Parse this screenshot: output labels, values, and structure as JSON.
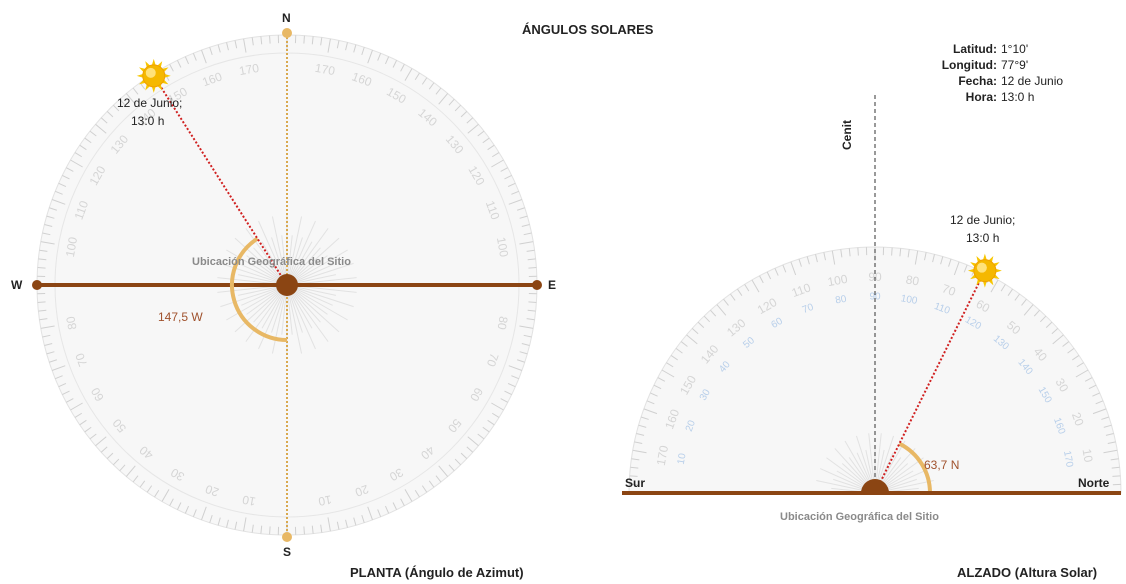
{
  "title": "ÁNGULOS SOLARES",
  "colors": {
    "axis_brown": "#8b4513",
    "ns_line": "#d9a94f",
    "angle_arc": "#e8b865",
    "dotted_red": "#d02020",
    "dial_face": "#f7f7f7",
    "dial_ticks": "#d0d0d0",
    "dial_numbers": "#d5d5d5",
    "blue_numbers": "#b8cfea",
    "sun": "#f5b800",
    "angle_text": "#a0522d"
  },
  "plan": {
    "caption": "PLANTA (Ángulo de Azimut)",
    "north": "N",
    "south": "S",
    "west": "W",
    "east": "E",
    "site_label": "Ubicación Geográfica del Sitio",
    "sun_label_line1": "12 de Junio;",
    "sun_label_line2": "13:0 h",
    "azimuth_label": "147,5  W",
    "azimuth_deg": 147.5,
    "sun_icon": "sun-icon",
    "dial_labels": [
      "180",
      "170",
      "160",
      "150",
      "140",
      "130",
      "120",
      "110",
      "100",
      "90",
      "80",
      "70",
      "60",
      "50",
      "40",
      "30",
      "20",
      "10",
      "0"
    ]
  },
  "elevation": {
    "caption": "ALZADO (Altura Solar)",
    "zenith": "Cenit",
    "south": "Sur",
    "north": "Norte",
    "site_label": "Ubicación Geográfica del Sitio",
    "sun_label_line1": "12 de Junio;",
    "sun_label_line2": "13:0 h",
    "altitude_label": "63,7  N",
    "altitude_deg": 63.7,
    "sun_icon": "sun-icon",
    "outer_labels": [
      "170",
      "160",
      "150",
      "140",
      "130",
      "120",
      "110",
      "100",
      "90",
      "80",
      "70",
      "60",
      "50",
      "40",
      "30",
      "20",
      "10"
    ],
    "inner_labels": [
      "10",
      "20",
      "30",
      "40",
      "50",
      "60",
      "70",
      "80",
      "90",
      "100",
      "110",
      "120",
      "130",
      "140",
      "150",
      "160",
      "170"
    ]
  },
  "info": {
    "latitude_label": "Latitud:",
    "latitude_value": "1°10'",
    "longitude_label": "Longitud:",
    "longitude_value": "77°9'",
    "date_label": "Fecha:",
    "date_value": "12 de Junio",
    "time_label": "Hora:",
    "time_value": "13:0 h"
  }
}
